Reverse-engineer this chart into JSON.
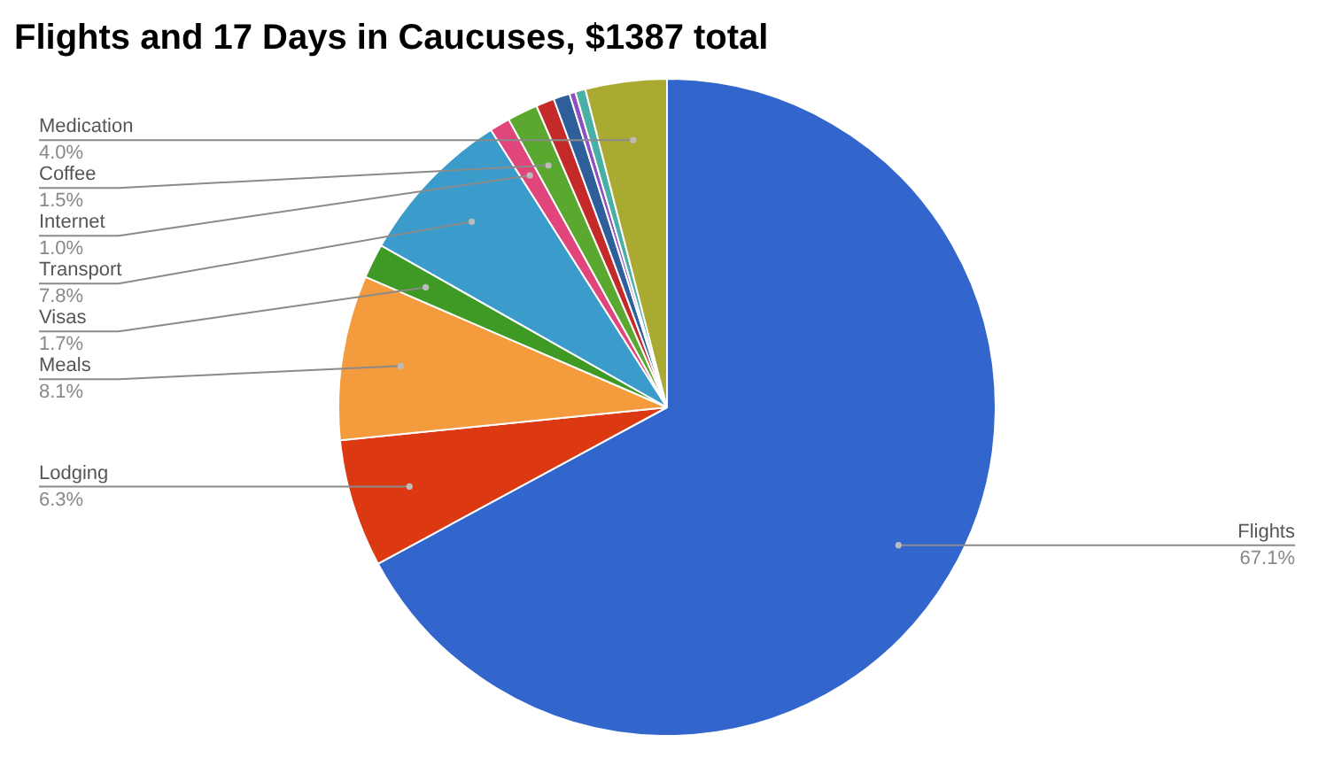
{
  "chart_data": {
    "type": "pie",
    "title": "Flights and 17 Days in Caucuses, $1387 total",
    "categories": [
      "Flights",
      "Lodging",
      "Meals",
      "Visas",
      "Transport",
      "Internet",
      "Coffee",
      null,
      null,
      null,
      null,
      "Medication"
    ],
    "values": [
      67.1,
      6.3,
      8.1,
      1.7,
      7.8,
      1.0,
      1.5,
      0.9,
      0.8,
      0.3,
      0.5,
      4.0
    ],
    "colors": [
      "#3366cc",
      "#dc3912",
      "#f39b3d",
      "#3e9a24",
      "#3b9ccb",
      "#e0457b",
      "#5aa830",
      "#c42a2a",
      "#2e5f9a",
      "#8f4fc0",
      "#4ab0a6",
      "#aaaa33"
    ],
    "value_labels": [
      "67.1%",
      "6.3%",
      "8.1%",
      "1.7%",
      "7.8%",
      "1.0%",
      "1.5%",
      null,
      null,
      null,
      null,
      "4.0%"
    ],
    "legend": false
  }
}
